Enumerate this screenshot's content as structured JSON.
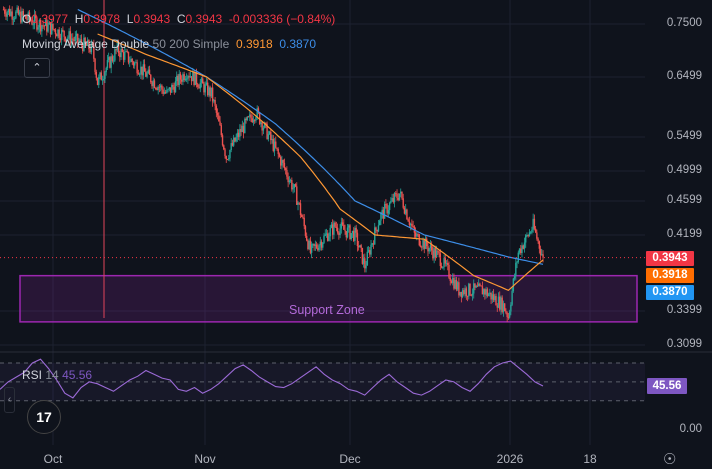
{
  "legend": {
    "ohlc": {
      "o_label": "O",
      "o": "0.3977",
      "h_label": "H",
      "h": "0.3978",
      "l_label": "L",
      "l": "0.3943",
      "c_label": "C",
      "c": "0.3943",
      "change": "-0.003336 (−0.84%)"
    },
    "ma": {
      "name": "Moving Average Double",
      "params": "50 200 Simple",
      "ma50": "0.3918",
      "ma200": "0.3870"
    },
    "collapse_icon": "chevron-up-icon"
  },
  "price_axis": [
    "0.7500",
    "0.6499",
    "0.5499",
    "0.4999",
    "0.4599",
    "0.4199",
    "0.3399",
    "0.3099"
  ],
  "price_tags": {
    "last": "0.3943",
    "ma50": "0.3918",
    "ma200": "0.3870"
  },
  "rsi": {
    "name": "RSI",
    "period": "14",
    "value": "45.56",
    "axis_zero": "0.00",
    "values": [
      42,
      50,
      55,
      60,
      70,
      74,
      64,
      52,
      38,
      33,
      44,
      50,
      48,
      44,
      40,
      46,
      52,
      56,
      62,
      58,
      54,
      52,
      42,
      40,
      44,
      38,
      42,
      48,
      56,
      64,
      68,
      62,
      55,
      50,
      45,
      44,
      48,
      54,
      60,
      66,
      58,
      52,
      48,
      42,
      40,
      36,
      44,
      52,
      58,
      50,
      44,
      38,
      36,
      40,
      46,
      52,
      50,
      44,
      40,
      48,
      58,
      66,
      70,
      72,
      65,
      58,
      50,
      45.56
    ]
  },
  "time_axis": [
    "Oct",
    "Nov",
    "Dec",
    "2026",
    "18"
  ],
  "support_zone": {
    "label": "Support Zone",
    "top": 0.375,
    "bottom": 0.33
  },
  "colors": {
    "up": "#26a69a",
    "down": "#ef5350",
    "ma50": "#ff9834",
    "ma200": "#3d8ee8",
    "rsi": "#9b6ad6",
    "zone": "#9c27b0",
    "last": "#f23645"
  },
  "series": {
    "start_date": "2025-09-21",
    "close_path": [
      [
        "2025-09-21",
        0.78
      ],
      [
        "2025-10-01",
        0.74
      ],
      [
        "2025-10-09",
        0.7
      ],
      [
        "2025-10-10",
        0.64
      ],
      [
        "2025-10-14",
        0.7
      ],
      [
        "2025-10-18",
        0.67
      ],
      [
        "2025-10-24",
        0.62
      ],
      [
        "2025-10-28",
        0.66
      ],
      [
        "2025-11-02",
        0.62
      ],
      [
        "2025-11-05",
        0.52
      ],
      [
        "2025-11-08",
        0.56
      ],
      [
        "2025-11-11",
        0.59
      ],
      [
        "2025-11-15",
        0.53
      ],
      [
        "2025-11-19",
        0.47
      ],
      [
        "2025-11-22",
        0.4
      ],
      [
        "2025-11-27",
        0.43
      ],
      [
        "2025-12-01",
        0.42
      ],
      [
        "2025-12-03",
        0.385
      ],
      [
        "2025-12-06",
        0.44
      ],
      [
        "2025-12-10",
        0.47
      ],
      [
        "2025-12-13",
        0.42
      ],
      [
        "2025-12-18",
        0.395
      ],
      [
        "2025-12-22",
        0.36
      ],
      [
        "2025-12-27",
        0.36
      ],
      [
        "2025-12-31",
        0.345
      ],
      [
        "2026-01-01",
        0.335
      ],
      [
        "2026-01-03",
        0.4
      ],
      [
        "2026-01-06",
        0.43
      ],
      [
        "2026-01-08",
        0.3943
      ]
    ],
    "ma50_path": [
      [
        "2025-10-10",
        0.73
      ],
      [
        "2025-10-20",
        0.69
      ],
      [
        "2025-11-01",
        0.65
      ],
      [
        "2025-11-10",
        0.59
      ],
      [
        "2025-11-20",
        0.52
      ],
      [
        "2025-11-28",
        0.45
      ],
      [
        "2025-12-05",
        0.42
      ],
      [
        "2025-12-15",
        0.415
      ],
      [
        "2025-12-25",
        0.375
      ],
      [
        "2026-01-01",
        0.36
      ],
      [
        "2026-01-08",
        0.3918
      ]
    ],
    "ma200_path": [
      [
        "2025-10-06",
        0.78
      ],
      [
        "2025-10-20",
        0.71
      ],
      [
        "2025-11-01",
        0.65
      ],
      [
        "2025-11-15",
        0.57
      ],
      [
        "2025-12-01",
        0.46
      ],
      [
        "2025-12-15",
        0.42
      ],
      [
        "2026-01-01",
        0.395
      ],
      [
        "2026-01-08",
        0.387
      ]
    ]
  }
}
